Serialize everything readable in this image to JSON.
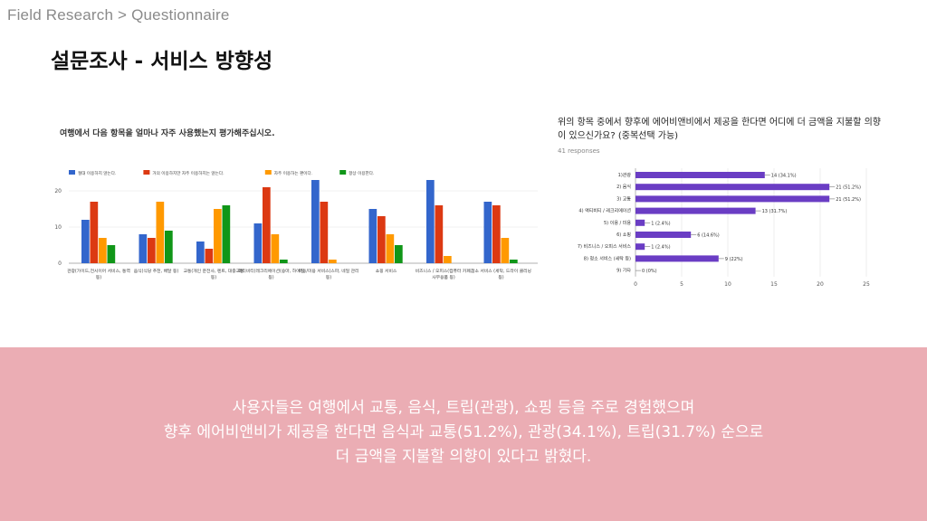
{
  "breadcrumb": "Field Research > Questionnaire",
  "title": "설문조사 - 서비스 방향성",
  "colors": {
    "blue": "#3366cc",
    "red": "#dc3912",
    "orange": "#ff9900",
    "green": "#109618",
    "purple": "#6a3dc4",
    "band": "#ebadb4"
  },
  "chart_data": [
    {
      "type": "bar",
      "title": "여행에서 다음 항목을 얼마나 자주 사용했는지 평가해주십시오.",
      "categories": [
        "관광(가이드,전시이어 서비스, 통역 등)",
        "음식(식당 추천, 배달 등)",
        "교통(개인 운전사, 렌트, 대중교통 등)",
        "액티비티(레크리에이션(승마, 하이킹 등)",
        "미용/미용 서비스(스파, 네일 관리 등)",
        "쇼핑 서비스",
        "비즈니스 / 오피스(컴퓨터 카페, 사무용품 등)",
        "청소 서비스 (세탁, 드라이 클리닝 등)"
      ],
      "series": [
        {
          "name": "절대 이용하지 않는다.",
          "values": [
            12,
            8,
            6,
            11,
            23,
            15,
            23,
            17
          ]
        },
        {
          "name": "거의 이용하지만 자주 이용하지는 않는다.",
          "values": [
            17,
            7,
            4,
            21,
            17,
            13,
            16,
            16
          ]
        },
        {
          "name": "자주 이용하는 편이다.",
          "values": [
            7,
            17,
            15,
            8,
            1,
            8,
            2,
            7
          ]
        },
        {
          "name": "항상 이용한다.",
          "values": [
            5,
            9,
            16,
            1,
            0,
            5,
            0,
            1
          ]
        }
      ],
      "yticks": [
        "0",
        "10",
        "20"
      ],
      "ylim": [
        0,
        23
      ],
      "legend": "top-left",
      "grid": true
    },
    {
      "type": "bar",
      "orientation": "horizontal",
      "title": "위의 항목 중에서 향후에 에어비앤비에서 제공을 한다면 어디에 더 금액을 지불할 의향이 있으신가요? (중복선택 가능)",
      "responses": "41 responses",
      "categories": [
        "1)관광",
        "2) 음식",
        "3) 교통",
        "4) 액티비티 / 레크리에이션",
        "5) 이용 / 미용",
        "6) 쇼핑",
        "7) 비즈니스 / 오피스 서비스",
        "8) 청소 서비스 (세탁 등)",
        "9) 기타"
      ],
      "values": [
        14,
        21,
        21,
        13,
        1,
        6,
        1,
        9,
        0
      ],
      "value_labels": [
        "14 (34.1%)",
        "21 (51.2%)",
        "21 (51.2%)",
        "13 (31.7%)",
        "1 (2.4%)",
        "6 (14.6%)",
        "1 (2.4%)",
        "9 (22%)",
        "0 (0%)"
      ],
      "xticks": [
        "0",
        "5",
        "10",
        "15",
        "20",
        "25"
      ],
      "xlim": [
        0,
        25
      ],
      "grid": true
    }
  ],
  "summary": [
    "사용자들은 여행에서 교통, 음식, 트립(관광), 쇼핑 등을 주로 경험했으며",
    "향후 에어비앤비가 제공을 한다면 음식과 교통(51.2%), 관광(34.1%), 트립(31.7%) 순으로",
    "더 금액을 지불할 의향이 있다고 밝혔다."
  ]
}
